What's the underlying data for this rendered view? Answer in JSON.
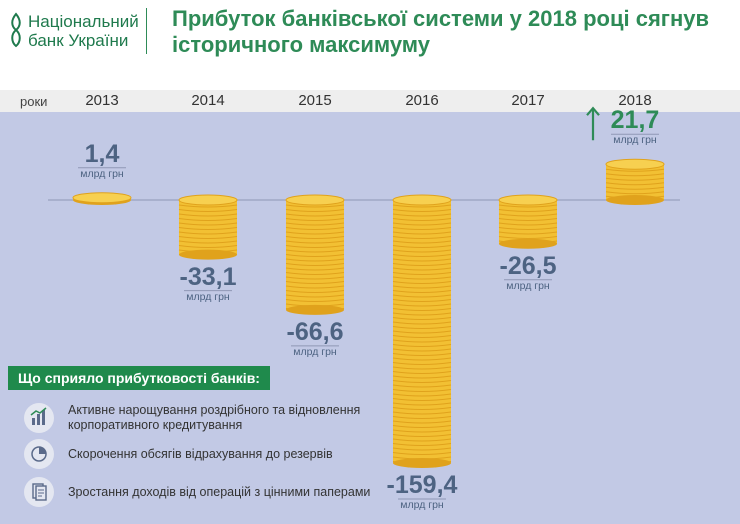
{
  "header": {
    "logo_line1": "Національний",
    "logo_line2": "банк України",
    "title_line1": "Прибуток банківської системи у 2018 році сягнув",
    "title_line2": "історичного максимуму"
  },
  "chart_data": {
    "type": "bar",
    "x_axis_label": "роки",
    "categories": [
      "2013",
      "2014",
      "2015",
      "2016",
      "2017",
      "2018"
    ],
    "values": [
      1.4,
      -33.1,
      -66.6,
      -159.4,
      -26.5,
      21.7
    ],
    "value_labels": [
      "1,4",
      "-33,1",
      "-66,6",
      "-159,4",
      "-26,5",
      "21,7"
    ],
    "unit": "млрд грн",
    "highlight": {
      "category": "2018",
      "indicator": "up-arrow"
    },
    "colors": {
      "coin": "#f2c033",
      "coin_edge": "#e0a21c",
      "background": "#c2c9e5",
      "positive": "#2e8b57",
      "label": "#4d6382"
    }
  },
  "factors": {
    "title": "Що сприяло прибутковості банків:",
    "items": [
      {
        "icon": "chart-growth-icon",
        "text": "Активне нарощування роздрібного та відновлення корпоративного кредитування"
      },
      {
        "icon": "pie-chart-icon",
        "text": "Скорочення обсягів відрахування до резервів"
      },
      {
        "icon": "documents-icon",
        "text": "Зростання доходів від операцій з цінними паперами"
      }
    ]
  }
}
